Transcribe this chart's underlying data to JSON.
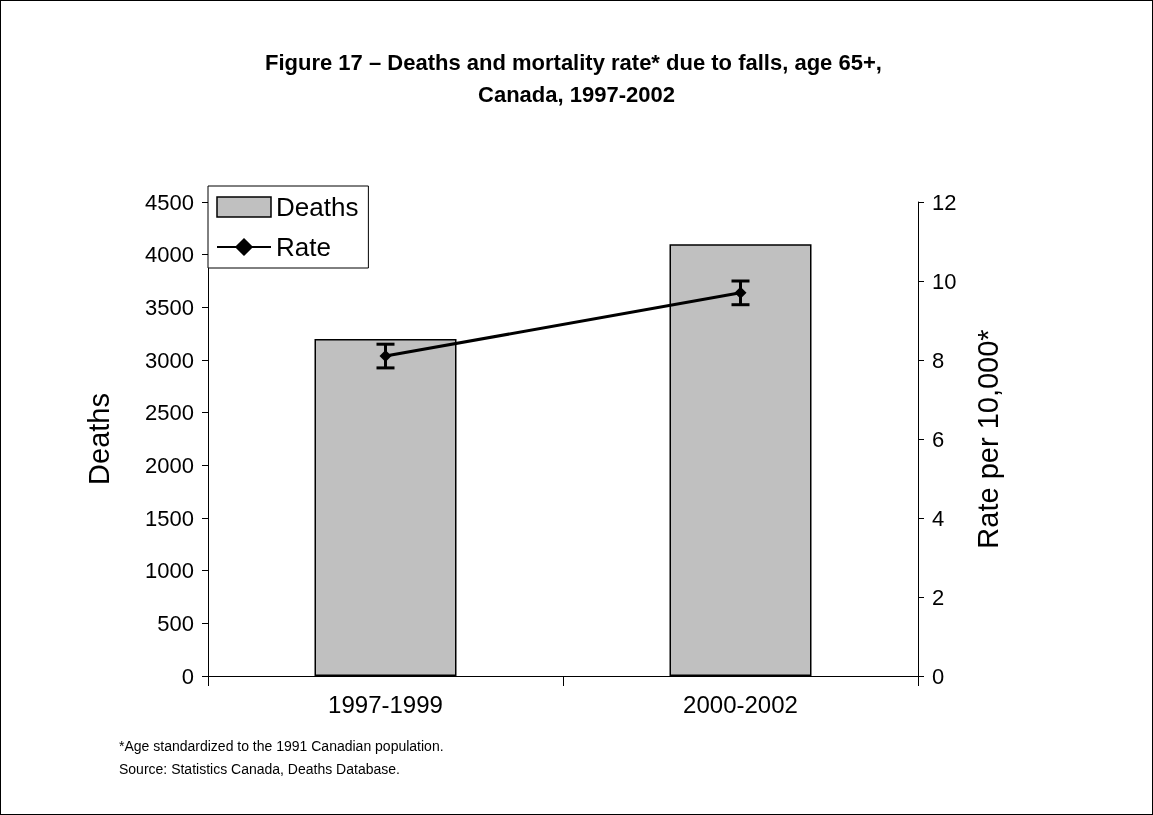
{
  "chart_data": {
    "type": "bar",
    "title": "Figure 17 – Deaths and mortality rate* due to falls, age 65+, Canada, 1997-2002",
    "categories": [
      "1997-1999",
      "2000-2002"
    ],
    "series": [
      {
        "name": "Deaths",
        "color": "#c0c0c0",
        "values": [
          3200,
          4100
        ]
      },
      {
        "name": "Rate",
        "type": "line",
        "axis": "y2",
        "color": "#000000",
        "values": [
          8.1,
          9.7
        ],
        "errors": [
          [
            7.8,
            8.4
          ],
          [
            9.4,
            10.0
          ]
        ]
      }
    ],
    "ylabel": "Deaths",
    "y2label": "Rate per 10,000*",
    "ylim": [
      0,
      4500
    ],
    "yticks": [
      0,
      500,
      1000,
      1500,
      2000,
      2500,
      3000,
      3500,
      4000,
      4500
    ],
    "y2lim": [
      0,
      12
    ],
    "y2ticks": [
      0,
      2,
      4,
      6,
      8,
      10,
      12
    ],
    "grid": false,
    "legend": "top left",
    "marker": "diamond",
    "line_style": "solid",
    "annotations": [
      "*Age standardized to the 1991 Canadian population.",
      "Source: Statistics Canada, Deaths Database."
    ]
  }
}
